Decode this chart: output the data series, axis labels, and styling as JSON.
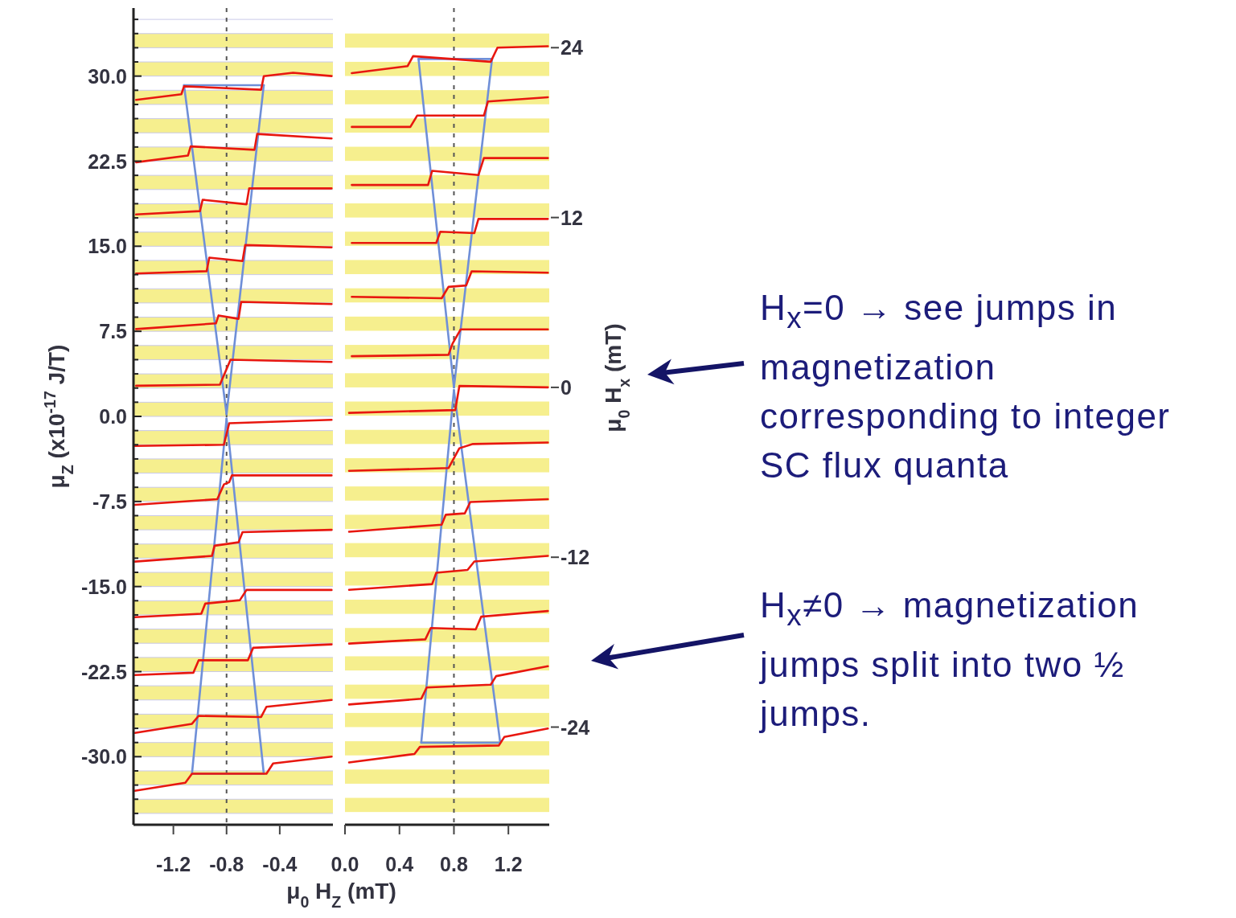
{
  "chart_data": [
    {
      "type": "line",
      "xlabel": "μ$_{0}$ H$_{Z}$ (mT)",
      "ylabel": "μ$_{Z}$ (x10$^{-17}$ J/T)",
      "xlim": [
        -1.5,
        0
      ],
      "xticks": [
        -1.2,
        -0.8,
        -0.4
      ],
      "ylim": [
        -36,
        36
      ],
      "grid": "y",
      "yticks": [
        {
          "value": -35,
          "label": null
        },
        {
          "value": -33.75,
          "label": null
        },
        {
          "value": -32.5,
          "label": null
        },
        {
          "value": -31.25,
          "label": null
        },
        {
          "value": -30,
          "label": "-30.0"
        },
        {
          "value": -28.75,
          "label": null
        },
        {
          "value": -27.5,
          "label": null
        },
        {
          "value": -26.25,
          "label": null
        },
        {
          "value": -25,
          "label": null
        },
        {
          "value": -23.75,
          "label": null
        },
        {
          "value": -22.5,
          "label": "-22.5"
        },
        {
          "value": -21.25,
          "label": null
        },
        {
          "value": -20,
          "label": null
        },
        {
          "value": -18.75,
          "label": null
        },
        {
          "value": -17.5,
          "label": null
        },
        {
          "value": -16.25,
          "label": null
        },
        {
          "value": -15,
          "label": "-15.0"
        },
        {
          "value": -13.75,
          "label": null
        },
        {
          "value": -12.5,
          "label": null
        },
        {
          "value": -11.25,
          "label": null
        },
        {
          "value": -10,
          "label": null
        },
        {
          "value": -8.75,
          "label": null
        },
        {
          "value": -7.5,
          "label": "-7.5"
        },
        {
          "value": -6.25,
          "label": null
        },
        {
          "value": -5,
          "label": null
        },
        {
          "value": -3.75,
          "label": null
        },
        {
          "value": -2.5,
          "label": null
        },
        {
          "value": -1.25,
          "label": null
        },
        {
          "value": 0,
          "label": "0.0"
        },
        {
          "value": 1.25,
          "label": null
        },
        {
          "value": 2.5,
          "label": null
        },
        {
          "value": 3.75,
          "label": null
        },
        {
          "value": 5,
          "label": null
        },
        {
          "value": 6.25,
          "label": null
        },
        {
          "value": 7.5,
          "label": "7.5"
        },
        {
          "value": 8.75,
          "label": null
        },
        {
          "value": 10,
          "label": null
        },
        {
          "value": 11.25,
          "label": null
        },
        {
          "value": 12.5,
          "label": null
        },
        {
          "value": 13.75,
          "label": null
        },
        {
          "value": 15,
          "label": "15.0"
        },
        {
          "value": 16.25,
          "label": null
        },
        {
          "value": 17.5,
          "label": null
        },
        {
          "value": 18.75,
          "label": null
        },
        {
          "value": 20,
          "label": null
        },
        {
          "value": 21.25,
          "label": null
        },
        {
          "value": 22.5,
          "label": "22.5"
        },
        {
          "value": 23.75,
          "label": null
        },
        {
          "value": 25,
          "label": null
        },
        {
          "value": 26.25,
          "label": null
        },
        {
          "value": 27.5,
          "label": null
        },
        {
          "value": 28.75,
          "label": null
        },
        {
          "value": 30,
          "label": "30.0"
        },
        {
          "value": 31.25,
          "label": null
        },
        {
          "value": 32.5,
          "label": null
        },
        {
          "value": 33.75,
          "label": null
        },
        {
          "value": 35,
          "label": null
        }
      ],
      "ref_lines": [
        {
          "axis": "x",
          "value": -0.8,
          "color": "#555555",
          "line_style": "dashed"
        }
      ],
      "bands": [
        {
          "axis": "y",
          "from": -35,
          "to": -33.75,
          "color": "#f6ef8e"
        },
        {
          "axis": "y",
          "from": -32.5,
          "to": -31.25,
          "color": "#f6ef8e"
        },
        {
          "axis": "y",
          "from": -30,
          "to": -28.75,
          "color": "#f6ef8e"
        },
        {
          "axis": "y",
          "from": -27.5,
          "to": -26.25,
          "color": "#f6ef8e"
        },
        {
          "axis": "y",
          "from": -25,
          "to": -23.75,
          "color": "#f6ef8e"
        },
        {
          "axis": "y",
          "from": -22.5,
          "to": -21.25,
          "color": "#f6ef8e"
        },
        {
          "axis": "y",
          "from": -20,
          "to": -18.75,
          "color": "#f6ef8e"
        },
        {
          "axis": "y",
          "from": -17.5,
          "to": -16.25,
          "color": "#f6ef8e"
        },
        {
          "axis": "y",
          "from": -15,
          "to": -13.75,
          "color": "#f6ef8e"
        },
        {
          "axis": "y",
          "from": -12.5,
          "to": -11.25,
          "color": "#f6ef8e"
        },
        {
          "axis": "y",
          "from": -10,
          "to": -8.75,
          "color": "#f6ef8e"
        },
        {
          "axis": "y",
          "from": -7.5,
          "to": -6.25,
          "color": "#f6ef8e"
        },
        {
          "axis": "y",
          "from": -5,
          "to": -3.75,
          "color": "#f6ef8e"
        },
        {
          "axis": "y",
          "from": -2.5,
          "to": -1.25,
          "color": "#f6ef8e"
        },
        {
          "axis": "y",
          "from": 0,
          "to": 1.25,
          "color": "#f6ef8e"
        },
        {
          "axis": "y",
          "from": 2.5,
          "to": 3.75,
          "color": "#f6ef8e"
        },
        {
          "axis": "y",
          "from": 5,
          "to": 6.25,
          "color": "#f6ef8e"
        },
        {
          "axis": "y",
          "from": 7.5,
          "to": 8.75,
          "color": "#f6ef8e"
        },
        {
          "axis": "y",
          "from": 10,
          "to": 11.25,
          "color": "#f6ef8e"
        },
        {
          "axis": "y",
          "from": 12.5,
          "to": 13.75,
          "color": "#f6ef8e"
        },
        {
          "axis": "y",
          "from": 15,
          "to": 16.25,
          "color": "#f6ef8e"
        },
        {
          "axis": "y",
          "from": 17.5,
          "to": 18.75,
          "color": "#f6ef8e"
        },
        {
          "axis": "y",
          "from": 20,
          "to": 21.25,
          "color": "#f6ef8e"
        },
        {
          "axis": "y",
          "from": 22.5,
          "to": 23.75,
          "color": "#f6ef8e"
        },
        {
          "axis": "y",
          "from": 25,
          "to": 26.25,
          "color": "#f6ef8e"
        },
        {
          "axis": "y",
          "from": 27.5,
          "to": 28.75,
          "color": "#f6ef8e"
        },
        {
          "axis": "y",
          "from": 30,
          "to": 31.25,
          "color": "#f6ef8e"
        },
        {
          "axis": "y",
          "from": 32.5,
          "to": 33.75,
          "color": "#f6ef8e"
        }
      ],
      "series": [
        {
          "color": "#6f8fd8",
          "x": [
            -1.12,
            -0.52
          ],
          "values": [
            29.2,
            29.2
          ]
        },
        {
          "color": "#6f8fd8",
          "x": [
            -1.12,
            -0.8
          ],
          "values": [
            29.2,
            0.2
          ]
        },
        {
          "color": "#6f8fd8",
          "x": [
            -0.8,
            -0.52
          ],
          "values": [
            0.2,
            29.2
          ]
        },
        {
          "color": "#6f8fd8",
          "x": [
            -1.06,
            -0.52
          ],
          "values": [
            -31.5,
            -31.5
          ]
        },
        {
          "color": "#6f8fd8",
          "x": [
            -1.06,
            -0.8
          ],
          "values": [
            -31.5,
            -0.2
          ]
        },
        {
          "color": "#6f8fd8",
          "x": [
            -0.8,
            -0.52
          ],
          "values": [
            -0.2,
            -31.5
          ]
        },
        {
          "color": "#e8170f",
          "x": [
            -1.48,
            -1.14,
            -1.12,
            -0.54,
            -0.52,
            -0.3,
            -0.01
          ],
          "values": [
            27.9,
            28.4,
            29.1,
            28.8,
            30.0,
            30.3,
            30.0
          ]
        },
        {
          "color": "#e8170f",
          "x": [
            -1.48,
            -1.09,
            -1.07,
            -0.59,
            -0.57,
            -0.01
          ],
          "values": [
            22.4,
            23.0,
            23.8,
            23.5,
            24.9,
            24.5
          ]
        },
        {
          "color": "#e8170f",
          "x": [
            -1.48,
            -1.0,
            -0.98,
            -0.65,
            -0.63,
            -0.01
          ],
          "values": [
            17.8,
            18.1,
            19.1,
            18.7,
            20.1,
            20.1
          ]
        },
        {
          "color": "#e8170f",
          "x": [
            -1.48,
            -0.95,
            -0.93,
            -0.68,
            -0.66,
            -0.01
          ],
          "values": [
            12.6,
            12.8,
            14.0,
            13.7,
            15.1,
            14.9
          ]
        },
        {
          "color": "#e8170f",
          "x": [
            -1.48,
            -0.88,
            -0.86,
            -0.71,
            -0.69,
            -0.01
          ],
          "values": [
            7.7,
            8.2,
            8.9,
            8.6,
            10.1,
            9.9
          ]
        },
        {
          "color": "#e8170f",
          "x": [
            -1.48,
            -0.85,
            -0.77,
            -0.01
          ],
          "values": [
            2.7,
            2.8,
            5.0,
            4.8
          ]
        },
        {
          "color": "#e8170f",
          "x": [
            -1.49,
            -0.82,
            -0.78,
            -0.01
          ],
          "values": [
            -2.6,
            -2.5,
            -0.6,
            -0.3
          ]
        },
        {
          "color": "#e8170f",
          "x": [
            -1.49,
            -0.87,
            -0.82,
            -0.78,
            -0.76,
            -0.01
          ],
          "values": [
            -7.8,
            -7.3,
            -6.0,
            -5.8,
            -5.2,
            -5.2
          ]
        },
        {
          "color": "#e8170f",
          "x": [
            -1.49,
            -0.91,
            -0.89,
            -0.71,
            -0.68,
            -0.01
          ],
          "values": [
            -12.8,
            -12.3,
            -11.4,
            -11.1,
            -10.2,
            -10.0
          ]
        },
        {
          "color": "#e8170f",
          "x": [
            -1.49,
            -0.99,
            -0.96,
            -0.7,
            -0.65,
            -0.01
          ],
          "values": [
            -17.7,
            -17.4,
            -16.5,
            -16.2,
            -15.3,
            -15.3
          ]
        },
        {
          "color": "#e8170f",
          "x": [
            -1.49,
            -1.05,
            -1.01,
            -0.64,
            -0.6,
            -0.01
          ],
          "values": [
            -22.8,
            -22.6,
            -21.5,
            -21.5,
            -20.4,
            -20.1
          ]
        },
        {
          "color": "#e8170f",
          "x": [
            -1.49,
            -1.06,
            -1.01,
            -0.54,
            -0.5,
            -0.01
          ],
          "values": [
            -27.9,
            -27.1,
            -26.4,
            -26.5,
            -25.6,
            -25.0
          ]
        },
        {
          "color": "#e8170f",
          "x": [
            -1.49,
            -1.11,
            -1.06,
            -0.5,
            -0.45,
            -0.01
          ],
          "values": [
            -33.0,
            -32.3,
            -31.5,
            -31.5,
            -30.6,
            -30.0
          ]
        }
      ]
    },
    {
      "type": "line",
      "ylabel": "μ$_{0}$ H$_{x}$ (mT)",
      "xlim": [
        0,
        1.5
      ],
      "xticks": [
        {
          "value": 0,
          "label": "0.0"
        },
        0.4,
        0.8,
        1.2
      ],
      "ylim": [
        -30.9,
        26.8
      ],
      "yticks": [
        -24,
        -12,
        0,
        12,
        24
      ],
      "ref_lines": [
        {
          "axis": "x",
          "value": 0.8,
          "color": "#555555",
          "line_style": "dashed"
        }
      ],
      "annotations": [
        "H$_{x}$=0 → see jumps in magnetization corresponding to integer SC flux quanta",
        "H$_{x}$≠0 → magnetization jumps split into two ½ jumps."
      ],
      "bands": [
        {
          "axis": "y",
          "from": -30,
          "to": -29,
          "color": "#f6ef8e"
        },
        {
          "axis": "y",
          "from": -28,
          "to": -27,
          "color": "#f6ef8e"
        },
        {
          "axis": "y",
          "from": -26,
          "to": -25,
          "color": "#f6ef8e"
        },
        {
          "axis": "y",
          "from": -24,
          "to": -23,
          "color": "#f6ef8e"
        },
        {
          "axis": "y",
          "from": -22,
          "to": -21,
          "color": "#f6ef8e"
        },
        {
          "axis": "y",
          "from": -20,
          "to": -19,
          "color": "#f6ef8e"
        },
        {
          "axis": "y",
          "from": -18,
          "to": -17,
          "color": "#f6ef8e"
        },
        {
          "axis": "y",
          "from": -16,
          "to": -15,
          "color": "#f6ef8e"
        },
        {
          "axis": "y",
          "from": -14,
          "to": -13,
          "color": "#f6ef8e"
        },
        {
          "axis": "y",
          "from": -12,
          "to": -11,
          "color": "#f6ef8e"
        },
        {
          "axis": "y",
          "from": -10,
          "to": -9,
          "color": "#f6ef8e"
        },
        {
          "axis": "y",
          "from": -8,
          "to": -7,
          "color": "#f6ef8e"
        },
        {
          "axis": "y",
          "from": -6,
          "to": -5,
          "color": "#f6ef8e"
        },
        {
          "axis": "y",
          "from": -4,
          "to": -3,
          "color": "#f6ef8e"
        },
        {
          "axis": "y",
          "from": -2,
          "to": -1,
          "color": "#f6ef8e"
        },
        {
          "axis": "y",
          "from": 0,
          "to": 1,
          "color": "#f6ef8e"
        },
        {
          "axis": "y",
          "from": 2,
          "to": 3,
          "color": "#f6ef8e"
        },
        {
          "axis": "y",
          "from": 4,
          "to": 5,
          "color": "#f6ef8e"
        },
        {
          "axis": "y",
          "from": 6,
          "to": 7,
          "color": "#f6ef8e"
        },
        {
          "axis": "y",
          "from": 8,
          "to": 9,
          "color": "#f6ef8e"
        },
        {
          "axis": "y",
          "from": 10,
          "to": 11,
          "color": "#f6ef8e"
        },
        {
          "axis": "y",
          "from": 12,
          "to": 13,
          "color": "#f6ef8e"
        },
        {
          "axis": "y",
          "from": 14,
          "to": 15,
          "color": "#f6ef8e"
        },
        {
          "axis": "y",
          "from": 16,
          "to": 17,
          "color": "#f6ef8e"
        },
        {
          "axis": "y",
          "from": 18,
          "to": 19,
          "color": "#f6ef8e"
        },
        {
          "axis": "y",
          "from": 20,
          "to": 21,
          "color": "#f6ef8e"
        },
        {
          "axis": "y",
          "from": 22,
          "to": 23,
          "color": "#f6ef8e"
        },
        {
          "axis": "y",
          "from": 24,
          "to": 25,
          "color": "#f6ef8e"
        }
      ],
      "series": [
        {
          "color": "#6f8fd8",
          "x": [
            0.54,
            1.08
          ],
          "values": [
            23.2,
            23.2
          ]
        },
        {
          "color": "#6f8fd8",
          "x": [
            0.54,
            0.8
          ],
          "values": [
            23.2,
            0.0
          ]
        },
        {
          "color": "#6f8fd8",
          "x": [
            0.8,
            1.08
          ],
          "values": [
            0.0,
            23.2
          ]
        },
        {
          "color": "#6f8fd8",
          "x": [
            0.56,
            1.14
          ],
          "values": [
            -25.1,
            -25.1
          ]
        },
        {
          "color": "#6f8fd8",
          "x": [
            0.56,
            0.8
          ],
          "values": [
            -25.1,
            -0.2
          ]
        },
        {
          "color": "#6f8fd8",
          "x": [
            0.8,
            1.14
          ],
          "values": [
            -0.2,
            -25.1
          ]
        },
        {
          "color": "#e8170f",
          "x": [
            0.05,
            0.46,
            0.5,
            1.07,
            1.12,
            1.49
          ],
          "values": [
            22.2,
            22.7,
            23.4,
            23.0,
            24.0,
            24.1
          ]
        },
        {
          "color": "#e8170f",
          "x": [
            0.05,
            0.48,
            0.53,
            1.02,
            1.05,
            1.49
          ],
          "values": [
            18.4,
            18.4,
            19.2,
            19.2,
            20.2,
            20.5
          ]
        },
        {
          "color": "#e8170f",
          "x": [
            0.05,
            0.61,
            0.64,
            0.98,
            1.02,
            1.49
          ],
          "values": [
            14.3,
            14.3,
            15.3,
            15.0,
            16.2,
            16.2
          ]
        },
        {
          "color": "#e8170f",
          "x": [
            0.05,
            0.67,
            0.7,
            0.95,
            0.98,
            1.49
          ],
          "values": [
            10.2,
            10.2,
            11.0,
            10.9,
            11.9,
            11.9
          ]
        },
        {
          "color": "#e8170f",
          "x": [
            0.05,
            0.71,
            0.76,
            0.89,
            0.93,
            1.49
          ],
          "values": [
            6.4,
            6.3,
            7.1,
            7.2,
            8.2,
            8.1
          ]
        },
        {
          "color": "#e8170f",
          "x": [
            0.05,
            0.76,
            0.79,
            0.85,
            1.49
          ],
          "values": [
            2.2,
            2.3,
            3.1,
            4.1,
            4.1
          ]
        },
        {
          "color": "#e8170f",
          "x": [
            0.03,
            0.81,
            0.84,
            1.49
          ],
          "values": [
            -1.8,
            -1.6,
            0.1,
            0.0
          ]
        },
        {
          "color": "#e8170f",
          "x": [
            0.03,
            0.76,
            0.84,
            0.94,
            1.49
          ],
          "values": [
            -5.9,
            -5.7,
            -4.3,
            -4.0,
            -3.9
          ]
        },
        {
          "color": "#e8170f",
          "x": [
            0.03,
            0.71,
            0.74,
            0.88,
            0.92,
            1.49
          ],
          "values": [
            -10.2,
            -9.7,
            -9.0,
            -8.9,
            -8.1,
            -7.9
          ]
        },
        {
          "color": "#e8170f",
          "x": [
            0.03,
            0.64,
            0.67,
            0.9,
            0.95,
            1.49
          ],
          "values": [
            -14.3,
            -13.9,
            -13.1,
            -12.9,
            -12.3,
            -11.9
          ]
        },
        {
          "color": "#e8170f",
          "x": [
            0.03,
            0.59,
            0.63,
            0.96,
            1.0,
            1.49
          ],
          "values": [
            -18.1,
            -17.8,
            -17.0,
            -17.1,
            -16.2,
            -15.8
          ]
        },
        {
          "color": "#e8170f",
          "x": [
            0.03,
            0.56,
            0.6,
            1.07,
            1.11,
            1.49
          ],
          "values": [
            -22.4,
            -22.0,
            -21.2,
            -21.0,
            -20.4,
            -19.7
          ]
        },
        {
          "color": "#e8170f",
          "x": [
            0.03,
            0.51,
            0.55,
            1.13,
            1.17,
            1.49
          ],
          "values": [
            -26.5,
            -25.9,
            -25.4,
            -25.3,
            -24.7,
            -24.1
          ]
        }
      ]
    }
  ]
}
